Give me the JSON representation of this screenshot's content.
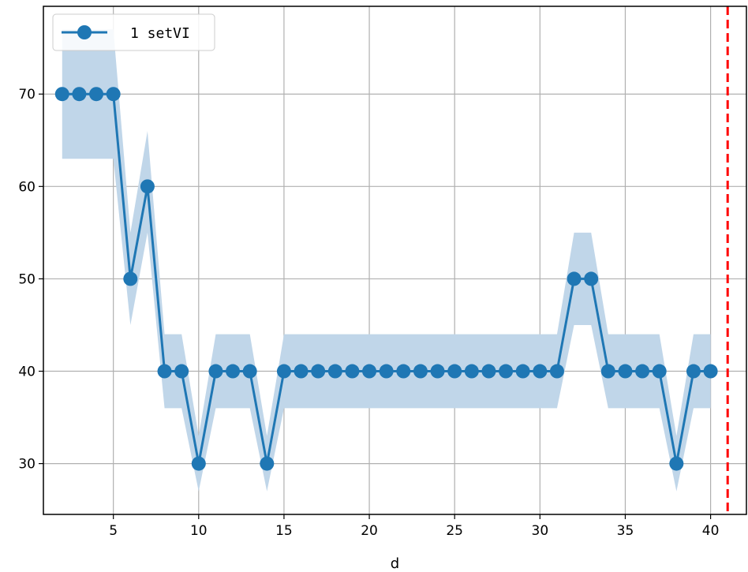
{
  "chart_data": {
    "type": "line",
    "title": "",
    "xlabel": "d",
    "ylabel": "",
    "xlim": [
      0.9,
      42.1
    ],
    "ylim": [
      24.5,
      79.5
    ],
    "xticks": [
      5,
      10,
      15,
      20,
      25,
      30,
      35,
      40
    ],
    "yticks": [
      30,
      40,
      50,
      60,
      70
    ],
    "grid": true,
    "legend_position": "top-left",
    "series": [
      {
        "name": "1 setVI",
        "color": "#1f77b4",
        "marker": "circle",
        "x": [
          2,
          3,
          4,
          5,
          6,
          7,
          8,
          9,
          10,
          11,
          12,
          13,
          14,
          15,
          16,
          17,
          18,
          19,
          20,
          21,
          22,
          23,
          24,
          25,
          26,
          27,
          28,
          29,
          30,
          31,
          32,
          33,
          34,
          35,
          36,
          37,
          38,
          39,
          40
        ],
        "y": [
          70,
          70,
          70,
          70,
          50,
          60,
          40,
          40,
          30,
          40,
          40,
          40,
          30,
          40,
          40,
          40,
          40,
          40,
          40,
          40,
          40,
          40,
          40,
          40,
          40,
          40,
          40,
          40,
          40,
          40,
          50,
          50,
          40,
          40,
          40,
          40,
          30,
          40,
          40
        ],
        "band_lower": [
          63,
          63,
          63,
          63,
          45,
          55,
          36,
          36,
          27,
          36,
          36,
          36,
          27,
          36,
          36,
          36,
          36,
          36,
          36,
          36,
          36,
          36,
          36,
          36,
          36,
          36,
          36,
          36,
          36,
          36,
          45,
          45,
          36,
          36,
          36,
          36,
          27,
          36,
          36
        ],
        "band_upper": [
          77,
          77,
          77,
          77,
          55,
          66,
          44,
          44,
          33,
          44,
          44,
          44,
          33,
          44,
          44,
          44,
          44,
          44,
          44,
          44,
          44,
          44,
          44,
          44,
          44,
          44,
          44,
          44,
          44,
          44,
          55,
          55,
          44,
          44,
          44,
          44,
          33,
          44,
          44
        ],
        "band_color": "#c0d6e9"
      }
    ],
    "vline": {
      "x": 41,
      "color": "#ff0000",
      "style": "dashed"
    }
  }
}
